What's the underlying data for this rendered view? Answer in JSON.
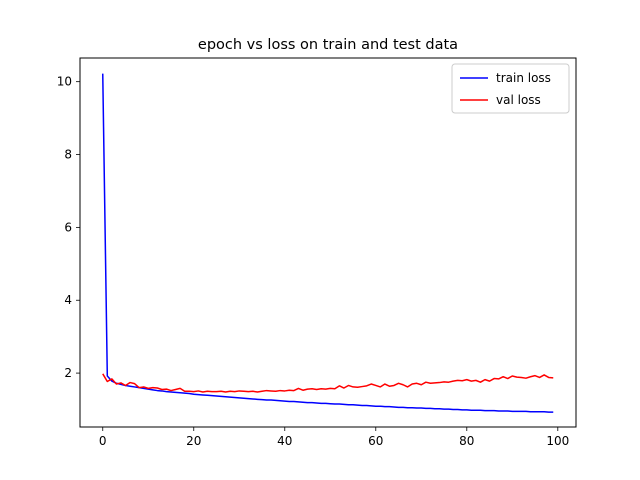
{
  "chart_data": {
    "type": "line",
    "title": "epoch vs loss on train and test data",
    "xlabel": "",
    "ylabel": "",
    "xlim": [
      -5,
      104
    ],
    "ylim": [
      0.52,
      10.65
    ],
    "xticks": [
      0,
      20,
      40,
      60,
      80,
      100
    ],
    "yticks": [
      2,
      4,
      6,
      8,
      10
    ],
    "grid": false,
    "legend_position": "top-right",
    "series": [
      {
        "name": "train loss",
        "color": "#0000ff",
        "x": [
          0,
          1,
          2,
          3,
          4,
          5,
          6,
          7,
          8,
          9,
          10,
          11,
          12,
          13,
          14,
          15,
          16,
          17,
          18,
          19,
          20,
          21,
          22,
          23,
          24,
          25,
          26,
          27,
          28,
          29,
          30,
          31,
          32,
          33,
          34,
          35,
          36,
          37,
          38,
          39,
          40,
          41,
          42,
          43,
          44,
          45,
          46,
          47,
          48,
          49,
          50,
          51,
          52,
          53,
          54,
          55,
          56,
          57,
          58,
          59,
          60,
          61,
          62,
          63,
          64,
          65,
          66,
          67,
          68,
          69,
          70,
          71,
          72,
          73,
          74,
          75,
          76,
          77,
          78,
          79,
          80,
          81,
          82,
          83,
          84,
          85,
          86,
          87,
          88,
          89,
          90,
          91,
          92,
          93,
          94,
          95,
          96,
          97,
          98,
          99
        ],
        "y": [
          10.22,
          1.92,
          1.78,
          1.72,
          1.69,
          1.66,
          1.64,
          1.62,
          1.6,
          1.58,
          1.56,
          1.54,
          1.52,
          1.51,
          1.49,
          1.48,
          1.47,
          1.46,
          1.45,
          1.44,
          1.42,
          1.41,
          1.4,
          1.39,
          1.38,
          1.37,
          1.36,
          1.35,
          1.34,
          1.33,
          1.32,
          1.31,
          1.3,
          1.29,
          1.28,
          1.27,
          1.26,
          1.26,
          1.25,
          1.24,
          1.23,
          1.22,
          1.22,
          1.21,
          1.2,
          1.19,
          1.19,
          1.18,
          1.17,
          1.17,
          1.16,
          1.15,
          1.15,
          1.14,
          1.13,
          1.13,
          1.12,
          1.11,
          1.11,
          1.1,
          1.09,
          1.09,
          1.08,
          1.08,
          1.07,
          1.06,
          1.06,
          1.05,
          1.05,
          1.04,
          1.04,
          1.03,
          1.03,
          1.02,
          1.02,
          1.01,
          1.01,
          1.0,
          1.0,
          0.99,
          0.99,
          0.98,
          0.98,
          0.98,
          0.97,
          0.97,
          0.97,
          0.96,
          0.96,
          0.96,
          0.95,
          0.95,
          0.95,
          0.95,
          0.94,
          0.94,
          0.94,
          0.94,
          0.93,
          0.93
        ]
      },
      {
        "name": "val loss",
        "color": "#ff0000",
        "x": [
          0,
          1,
          2,
          3,
          4,
          5,
          6,
          7,
          8,
          9,
          10,
          11,
          12,
          13,
          14,
          15,
          16,
          17,
          18,
          19,
          20,
          21,
          22,
          23,
          24,
          25,
          26,
          27,
          28,
          29,
          30,
          31,
          32,
          33,
          34,
          35,
          36,
          37,
          38,
          39,
          40,
          41,
          42,
          43,
          44,
          45,
          46,
          47,
          48,
          49,
          50,
          51,
          52,
          53,
          54,
          55,
          56,
          57,
          58,
          59,
          60,
          61,
          62,
          63,
          64,
          65,
          66,
          67,
          68,
          69,
          70,
          71,
          72,
          73,
          74,
          75,
          76,
          77,
          78,
          79,
          80,
          81,
          82,
          83,
          84,
          85,
          86,
          87,
          88,
          89,
          90,
          91,
          92,
          93,
          94,
          95,
          96,
          97,
          98,
          99
        ],
        "y": [
          1.98,
          1.77,
          1.84,
          1.7,
          1.73,
          1.66,
          1.74,
          1.71,
          1.6,
          1.62,
          1.58,
          1.6,
          1.59,
          1.55,
          1.56,
          1.52,
          1.55,
          1.58,
          1.5,
          1.5,
          1.49,
          1.51,
          1.48,
          1.5,
          1.49,
          1.49,
          1.5,
          1.48,
          1.5,
          1.49,
          1.51,
          1.5,
          1.49,
          1.5,
          1.48,
          1.5,
          1.52,
          1.51,
          1.5,
          1.52,
          1.51,
          1.53,
          1.52,
          1.58,
          1.53,
          1.56,
          1.57,
          1.55,
          1.57,
          1.56,
          1.58,
          1.57,
          1.65,
          1.59,
          1.66,
          1.62,
          1.61,
          1.63,
          1.65,
          1.7,
          1.66,
          1.62,
          1.7,
          1.64,
          1.66,
          1.72,
          1.68,
          1.62,
          1.7,
          1.72,
          1.68,
          1.75,
          1.72,
          1.73,
          1.74,
          1.76,
          1.75,
          1.78,
          1.8,
          1.79,
          1.82,
          1.78,
          1.8,
          1.75,
          1.82,
          1.78,
          1.85,
          1.84,
          1.9,
          1.85,
          1.92,
          1.89,
          1.88,
          1.86,
          1.9,
          1.93,
          1.88,
          1.95,
          1.88,
          1.87
        ]
      }
    ]
  }
}
